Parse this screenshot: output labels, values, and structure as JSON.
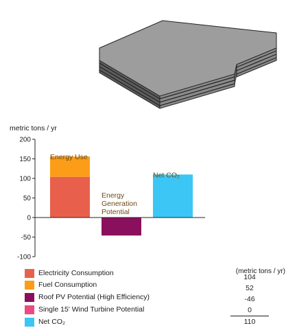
{
  "chart_data": {
    "type": "bar",
    "ylabel": "metric tons / yr",
    "ylim": [
      -100,
      200
    ],
    "yticks": [
      200,
      150,
      100,
      50,
      0,
      -50,
      -100
    ],
    "grid": false,
    "stacks": [
      {
        "label": "Energy Use",
        "segments": [
          {
            "series": "Electricity Consumption",
            "value": 104
          },
          {
            "series": "Fuel Consumption",
            "value": 52
          }
        ]
      },
      {
        "label": "Energy Generation Potential",
        "label_lines": [
          "Energy",
          "Generation",
          "Potential"
        ],
        "segments": [
          {
            "series": "Roof PV Potential (High Efficiency)",
            "value": -46
          }
        ]
      },
      {
        "label": "Net CO₂",
        "segments": [
          {
            "series": "Net CO₂",
            "value": 110
          }
        ]
      }
    ],
    "legend": {
      "unit_header": "(metric tons / yr)",
      "placement": "bottom",
      "items": [
        {
          "name": "Electricity Consumption",
          "value": "104",
          "color": "#e8604c"
        },
        {
          "name": "Fuel Consumption",
          "value": "52",
          "color": "#fb9d18"
        },
        {
          "name": "Roof PV Potential (High Efficiency)",
          "value": "-46",
          "color": "#8a0f5c"
        },
        {
          "name": "Single 15' Wind Turbine Potential",
          "value": "0",
          "color": "#ec4a84"
        },
        {
          "name": "Net CO₂",
          "value": "110",
          "color": "#3cc6f6"
        }
      ]
    }
  }
}
